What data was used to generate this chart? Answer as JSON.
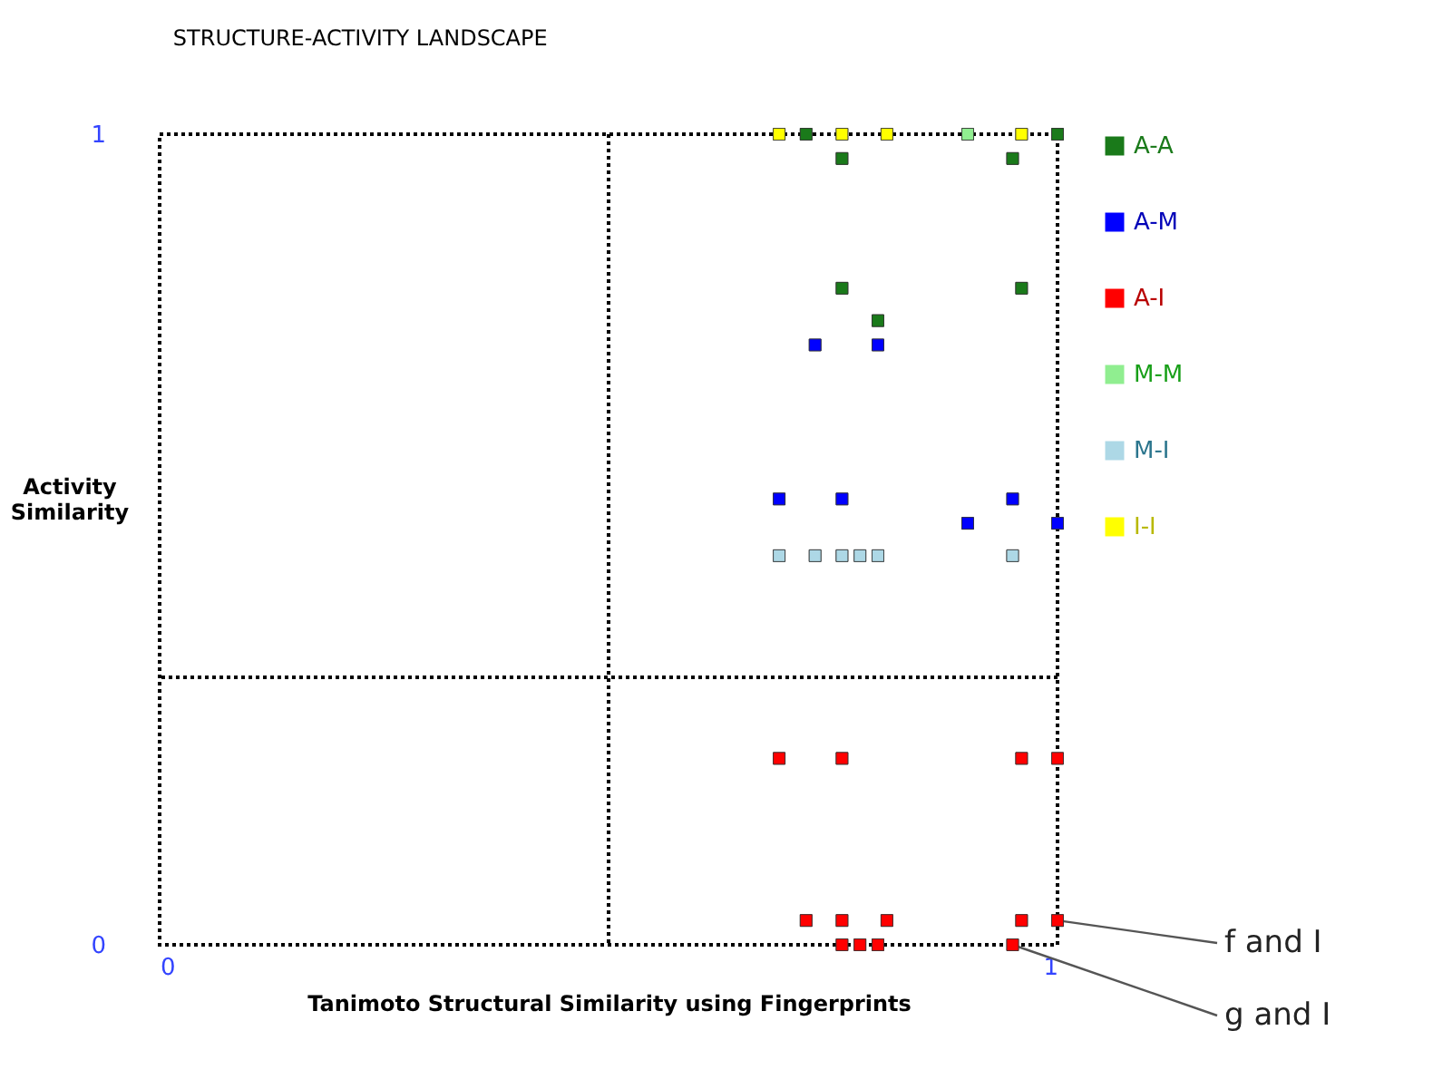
{
  "chart_data": {
    "type": "scatter",
    "title": "STRUCTURE-ACTIVITY LANDSCAPE",
    "xlabel": "Tanimoto Structural Similarity using Fingerprints",
    "ylabel": "Activity Similarity",
    "xlim": [
      0,
      1
    ],
    "ylim": [
      0,
      1
    ],
    "xticks": [
      0,
      1
    ],
    "yticks": [
      0,
      1
    ],
    "legend": "right",
    "marker": "square",
    "ref_lines": [
      {
        "axis": "x",
        "value": 0.5,
        "color": "#000000",
        "line_style": "dotted"
      },
      {
        "axis": "y",
        "value": 0.33,
        "color": "#000000",
        "line_style": "dotted"
      }
    ],
    "series": [
      {
        "name": "A-A",
        "color": "#1a7a1a",
        "x": [
          0.72,
          1.0,
          0.76,
          0.95,
          0.76,
          0.96,
          0.8
        ],
        "values": [
          1,
          1,
          0.97,
          0.97,
          0.81,
          0.81,
          0.77
        ]
      },
      {
        "name": "A-M",
        "color": "#0000ff",
        "x": [
          0.73,
          0.8,
          0.69,
          0.76,
          0.95,
          0.9,
          1.0
        ],
        "values": [
          0.74,
          0.74,
          0.55,
          0.55,
          0.55,
          0.52,
          0.52
        ]
      },
      {
        "name": "A-I",
        "color": "#ff0000",
        "x": [
          0.69,
          0.76,
          0.96,
          1.0,
          0.72,
          0.76,
          0.81,
          0.96,
          1.0,
          0.76,
          0.78,
          0.8,
          0.95
        ],
        "values": [
          0.23,
          0.23,
          0.23,
          0.23,
          0.03,
          0.03,
          0.03,
          0.03,
          0.03,
          0,
          0,
          0,
          0
        ]
      },
      {
        "name": "M-M",
        "color": "#90ee90",
        "x": [
          0.9
        ],
        "values": [
          1
        ]
      },
      {
        "name": "M-I",
        "color": "#add8e6",
        "x": [
          0.69,
          0.73,
          0.76,
          0.78,
          0.8,
          0.95
        ],
        "values": [
          0.48,
          0.48,
          0.48,
          0.48,
          0.48,
          0.48
        ]
      },
      {
        "name": "I-I",
        "color": "#ffff00",
        "x": [
          0.69,
          0.76,
          0.81,
          0.96
        ],
        "values": [
          1,
          1,
          1,
          1
        ]
      }
    ],
    "annotations": [
      {
        "text": "f and I",
        "x": 1.0,
        "y": 0.03
      },
      {
        "text": "g and I",
        "x": 0.95,
        "y": 0
      }
    ]
  }
}
